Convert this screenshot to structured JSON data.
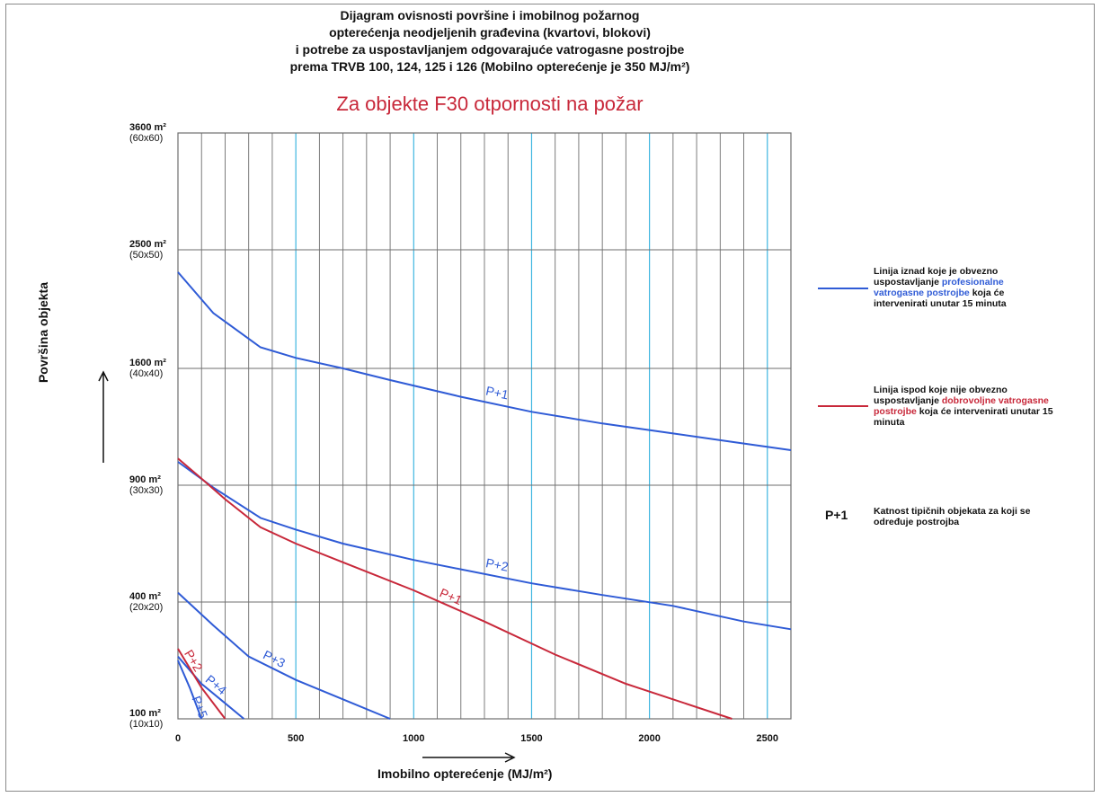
{
  "title_lines": [
    "Dijagram ovisnosti površine i imobilnog požarnog",
    "opterećenja neodjeljenih građevina (kvartovi, blokovi)",
    "i potrebe za uspostavljanjem odgovarajuće vatrogasne postrojbe",
    "prema TRVB 100, 124, 125 i 126 (Mobilno opterećenje je 350 MJ/m²)"
  ],
  "subtitle": "Za objekte F30 otpornosti na požar",
  "colors": {
    "blue": "#2f5bd6",
    "red": "#c8283a",
    "grid_major": "#6e6e6e",
    "grid_cyan": "#3fb6e0"
  },
  "legend": {
    "blue": {
      "pre": "Linija iznad koje je obvezno uspostavljanje ",
      "highlight": "profesionalne vatrogasne postrojbe",
      "post": " koja će intervenirati unutar 15 minuta"
    },
    "red": {
      "pre": "Linija ispod koje nije obvezno uspostavljanje ",
      "highlight": "dobrovoljne vatrogasne postrojbe",
      "post": " koja će intervenirati unutar 15 minuta"
    },
    "symbol": "P+1",
    "symbol_text": "Katnost tipičnih objekata za koji se određuje postrojba"
  },
  "chart_data": {
    "type": "line",
    "title": "Dijagram ovisnosti površine i imobilnog požarnog opterećenja neodjeljenih građevina (kvartovi, blokovi) i potrebe za uspostavljanjem odgovarajuće vatrogasne postrojbe prema TRVB 100, 124, 125 i 126 (Mobilno opterećenje je 350 MJ/m²)",
    "subtitle": "Za objekte F30 otpornosti na požar",
    "xlabel": "Imobilno opterećenje (MJ/m²)",
    "ylabel": "Površina objekta",
    "xlim": [
      0,
      2600
    ],
    "x_ticks": [
      "0",
      "500",
      "1000",
      "1500",
      "2000",
      "2500"
    ],
    "y_ticks": [
      {
        "value": 100,
        "label": "100 m²",
        "alt": "(10x10)"
      },
      {
        "value": 400,
        "label": "400 m²",
        "alt": "(20x20)"
      },
      {
        "value": 900,
        "label": "900 m²",
        "alt": "(30x30)"
      },
      {
        "value": 1600,
        "label": "1600 m²",
        "alt": "(40x40)"
      },
      {
        "value": 2500,
        "label": "2500 m²",
        "alt": "(50x50)"
      },
      {
        "value": 3600,
        "label": "3600 m²",
        "alt": "(60x60)"
      }
    ],
    "grid": true,
    "series": [
      {
        "name": "P+1",
        "color": "blue",
        "x": [
          0,
          150,
          350,
          500,
          700,
          900,
          1200,
          1500,
          1800,
          2100,
          2350,
          2600
        ],
        "y": [
          2330,
          2020,
          1760,
          1680,
          1600,
          1530,
          1430,
          1340,
          1270,
          1210,
          1160,
          1110
        ]
      },
      {
        "name": "P+2",
        "color": "blue",
        "x": [
          0,
          150,
          350,
          500,
          700,
          1000,
          1200,
          1500,
          1800,
          2100,
          2400,
          2600
        ],
        "y": [
          1040,
          890,
          760,
          710,
          650,
          580,
          540,
          480,
          430,
          390,
          350,
          330
        ]
      },
      {
        "name": "P+3",
        "color": "blue",
        "x": [
          0,
          150,
          300,
          500,
          700,
          900
        ],
        "y": [
          440,
          340,
          260,
          200,
          150,
          100
        ]
      },
      {
        "name": "P+4",
        "color": "blue",
        "x": [
          0,
          100,
          200,
          280
        ],
        "y": [
          260,
          190,
          140,
          100
        ]
      },
      {
        "name": "P+5",
        "color": "blue",
        "x": [
          0,
          50,
          100
        ],
        "y": [
          250,
          180,
          100
        ]
      },
      {
        "name": "P+1",
        "color": "red",
        "x": [
          0,
          100,
          200,
          350,
          500,
          700,
          1000,
          1300,
          1600,
          1900,
          2100,
          2350
        ],
        "y": [
          1060,
          940,
          840,
          720,
          650,
          570,
          450,
          350,
          265,
          190,
          150,
          100
        ]
      },
      {
        "name": "P+2",
        "color": "red",
        "x": [
          0,
          100,
          200
        ],
        "y": [
          280,
          180,
          100
        ]
      }
    ]
  }
}
